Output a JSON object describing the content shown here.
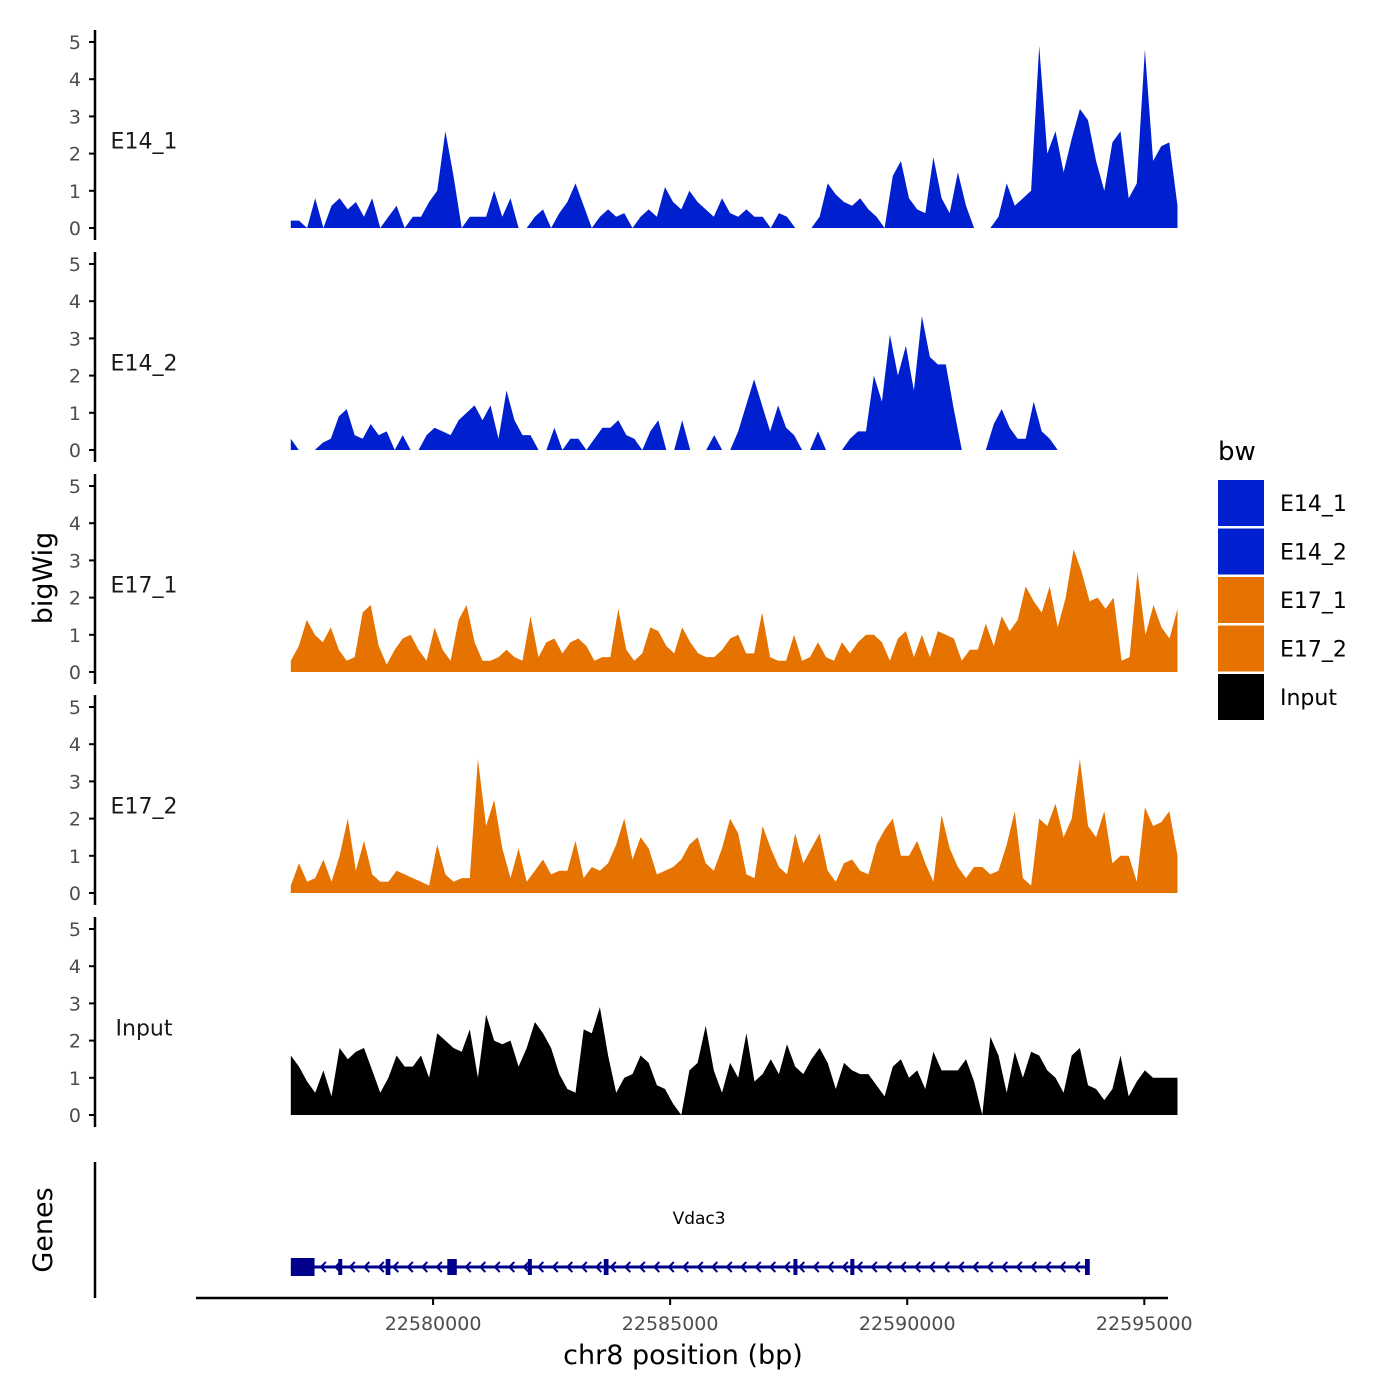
{
  "chart_data": {
    "type": "area",
    "ylabel": "bigWig",
    "xlabel": "chr8 position (bp)",
    "ylim": [
      0,
      5
    ],
    "yticks": [
      "0",
      "1",
      "2",
      "3",
      "4",
      "5"
    ],
    "xlim": [
      22575000,
      22595500
    ],
    "xticks": [
      {
        "value": 22580000,
        "label": "22580000"
      },
      {
        "value": 22585000,
        "label": "22585000"
      },
      {
        "value": 22590000,
        "label": "22590000"
      },
      {
        "value": 22595000,
        "label": "22595000"
      }
    ],
    "track_range": [
      22577000,
      22595700
    ],
    "legend": {
      "title": "bw",
      "entries": [
        {
          "label": "E14_1",
          "color": "#0020CF"
        },
        {
          "label": "E14_2",
          "color": "#0020CF"
        },
        {
          "label": "E17_1",
          "color": "#E67300"
        },
        {
          "label": "E17_2",
          "color": "#E67300"
        },
        {
          "label": "Input",
          "color": "#000000"
        }
      ]
    },
    "series": [
      {
        "name": "E14_1",
        "color": "#0020CF",
        "values": [
          0.2,
          0.2,
          0,
          0.8,
          0,
          0.6,
          0.8,
          0.5,
          0.7,
          0.3,
          0.8,
          0,
          0.3,
          0.6,
          0,
          0.3,
          0.3,
          0.7,
          1.0,
          2.6,
          1.4,
          0,
          0.3,
          0.3,
          0.3,
          1.0,
          0.3,
          0.8,
          0,
          0,
          0.3,
          0.5,
          0,
          0.4,
          0.7,
          1.2,
          0.6,
          0,
          0.3,
          0.5,
          0.3,
          0.4,
          0,
          0.3,
          0.5,
          0.3,
          1.1,
          0.7,
          0.5,
          1.0,
          0.7,
          0.5,
          0.3,
          0.8,
          0.4,
          0.3,
          0.5,
          0.3,
          0.3,
          0,
          0.4,
          0.3,
          0,
          0,
          0,
          0.3,
          1.2,
          0.9,
          0.7,
          0.6,
          0.8,
          0.5,
          0.3,
          0,
          1.4,
          1.8,
          0.8,
          0.5,
          0.4,
          1.9,
          0.8,
          0.4,
          1.5,
          0.6,
          0,
          0,
          0,
          0.3,
          1.2,
          0.6,
          0.8,
          1.0,
          4.9,
          2.0,
          2.6,
          1.5,
          2.4,
          3.2,
          2.9,
          1.8,
          1.0,
          2.3,
          2.6,
          0.8,
          1.2,
          4.8,
          1.8,
          2.2,
          2.3,
          0.6
        ]
      },
      {
        "name": "E14_2",
        "color": "#0020CF",
        "values": [
          0.3,
          0,
          0,
          0,
          0.2,
          0.3,
          0.9,
          1.1,
          0.4,
          0.3,
          0.7,
          0.4,
          0.5,
          0,
          0.4,
          0,
          0,
          0.4,
          0.6,
          0.5,
          0.4,
          0.8,
          1.0,
          1.2,
          0.8,
          1.2,
          0.3,
          1.6,
          0.8,
          0.4,
          0.4,
          0,
          0,
          0.6,
          0,
          0.3,
          0.3,
          0,
          0.3,
          0.6,
          0.6,
          0.8,
          0.4,
          0.3,
          0,
          0.5,
          0.8,
          0,
          0,
          0.8,
          0,
          0,
          0,
          0.4,
          0,
          0,
          0.5,
          1.2,
          1.9,
          1.2,
          0.5,
          1.2,
          0.6,
          0.4,
          0,
          0,
          0.5,
          0,
          0,
          0,
          0.3,
          0.5,
          0.5,
          2.0,
          1.3,
          3.1,
          2.0,
          2.8,
          1.6,
          3.6,
          2.5,
          2.3,
          2.3,
          1.1,
          0,
          0,
          0,
          0,
          0.7,
          1.1,
          0.6,
          0.3,
          0.3,
          1.3,
          0.5,
          0.3,
          0,
          0,
          0,
          0,
          0,
          0,
          0,
          0,
          0,
          0,
          0,
          0,
          0,
          0,
          0,
          0
        ]
      },
      {
        "name": "E17_1",
        "color": "#E67300",
        "values": [
          0.3,
          0.7,
          1.4,
          1.0,
          0.8,
          1.2,
          0.6,
          0.3,
          0.4,
          1.6,
          1.8,
          0.7,
          0.2,
          0.6,
          0.9,
          1.0,
          0.6,
          0.3,
          1.2,
          0.6,
          0.3,
          1.4,
          1.8,
          0.8,
          0.3,
          0.3,
          0.4,
          0.6,
          0.4,
          0.3,
          1.5,
          0.4,
          0.8,
          0.9,
          0.5,
          0.8,
          0.9,
          0.7,
          0.3,
          0.4,
          0.4,
          1.7,
          0.6,
          0.3,
          0.5,
          1.2,
          1.1,
          0.7,
          0.5,
          1.2,
          0.8,
          0.5,
          0.4,
          0.4,
          0.6,
          0.9,
          1.0,
          0.5,
          0.5,
          1.6,
          0.4,
          0.3,
          0.3,
          1.0,
          0.3,
          0.4,
          0.8,
          0.4,
          0.3,
          0.8,
          0.5,
          0.8,
          1.0,
          1.0,
          0.8,
          0.3,
          0.9,
          1.1,
          0.4,
          1.0,
          0.4,
          1.1,
          1.0,
          0.9,
          0.3,
          0.6,
          0.6,
          1.3,
          0.7,
          1.5,
          1.1,
          1.4,
          2.3,
          1.9,
          1.6,
          2.3,
          1.2,
          2.0,
          3.3,
          2.7,
          1.9,
          2.0,
          1.7,
          2.0,
          0.3,
          0.4,
          2.7,
          1.0,
          1.8,
          1.2,
          0.9,
          1.7
        ]
      },
      {
        "name": "E17_2",
        "color": "#E67300",
        "values": [
          0.2,
          0.8,
          0.3,
          0.4,
          0.9,
          0.3,
          1.0,
          2.0,
          0.6,
          1.4,
          0.5,
          0.3,
          0.3,
          0.6,
          0.5,
          0.4,
          0.3,
          0.2,
          1.3,
          0.5,
          0.3,
          0.4,
          0.4,
          3.6,
          1.8,
          2.5,
          1.2,
          0.4,
          1.2,
          0.3,
          0.6,
          0.9,
          0.5,
          0.6,
          0.6,
          1.4,
          0.4,
          0.7,
          0.6,
          0.8,
          1.3,
          2.0,
          0.9,
          1.5,
          1.2,
          0.5,
          0.6,
          0.7,
          0.9,
          1.3,
          1.5,
          0.8,
          0.6,
          1.2,
          2.0,
          1.6,
          0.5,
          0.4,
          1.8,
          1.2,
          0.7,
          0.5,
          1.6,
          0.8,
          1.2,
          1.6,
          0.6,
          0.3,
          0.8,
          0.9,
          0.6,
          0.5,
          1.3,
          1.7,
          2.0,
          1.0,
          1.0,
          1.4,
          0.8,
          0.3,
          2.1,
          1.2,
          0.7,
          0.4,
          0.7,
          0.7,
          0.5,
          0.6,
          1.3,
          2.2,
          0.4,
          0.2,
          2.0,
          1.8,
          2.4,
          1.5,
          2.0,
          3.6,
          1.8,
          1.5,
          2.2,
          0.8,
          1.0,
          1.0,
          0.3,
          2.3,
          1.8,
          1.9,
          2.2,
          1.0
        ]
      },
      {
        "name": "Input",
        "color": "#000000",
        "values": [
          1.6,
          1.3,
          0.9,
          0.6,
          1.2,
          0.5,
          1.8,
          1.5,
          1.7,
          1.8,
          1.2,
          0.6,
          1.0,
          1.6,
          1.3,
          1.3,
          1.6,
          1.0,
          2.2,
          2.0,
          1.8,
          1.7,
          2.3,
          1.0,
          2.7,
          2.0,
          1.9,
          2.0,
          1.3,
          1.8,
          2.5,
          2.2,
          1.8,
          1.1,
          0.7,
          0.6,
          2.3,
          2.2,
          2.9,
          1.6,
          0.6,
          1.0,
          1.1,
          1.6,
          1.4,
          0.8,
          0.7,
          0.3,
          0,
          1.2,
          1.4,
          2.4,
          1.2,
          0.6,
          1.4,
          1.0,
          2.2,
          0.9,
          1.1,
          1.5,
          1.1,
          1.9,
          1.3,
          1.1,
          1.5,
          1.8,
          1.4,
          0.7,
          1.4,
          1.2,
          1.1,
          1.1,
          0.8,
          0.5,
          1.3,
          1.5,
          1.0,
          1.2,
          0.7,
          1.7,
          1.2,
          1.2,
          1.2,
          1.5,
          0.9,
          0,
          2.1,
          1.6,
          0.6,
          1.7,
          1.0,
          1.7,
          1.6,
          1.2,
          1.0,
          0.6,
          1.6,
          1.8,
          0.8,
          0.7,
          0.4,
          0.7,
          1.6,
          0.5,
          0.9,
          1.2,
          1.0,
          1.0,
          1.0,
          1.0
        ]
      }
    ],
    "genes_track": {
      "label": "Genes",
      "gene_name": "Vdac3",
      "strand": "-",
      "start": 22577000,
      "end": 22593800,
      "color": "#00008B",
      "exons": [
        {
          "start": 22577000,
          "end": 22577500
        },
        {
          "start": 22578000,
          "end": 22578050
        },
        {
          "start": 22579000,
          "end": 22579100
        },
        {
          "start": 22580300,
          "end": 22580500
        },
        {
          "start": 22582000,
          "end": 22582050
        },
        {
          "start": 22583600,
          "end": 22583700
        },
        {
          "start": 22587600,
          "end": 22587650
        },
        {
          "start": 22588800,
          "end": 22588850
        },
        {
          "start": 22593750,
          "end": 22593850
        }
      ]
    }
  }
}
